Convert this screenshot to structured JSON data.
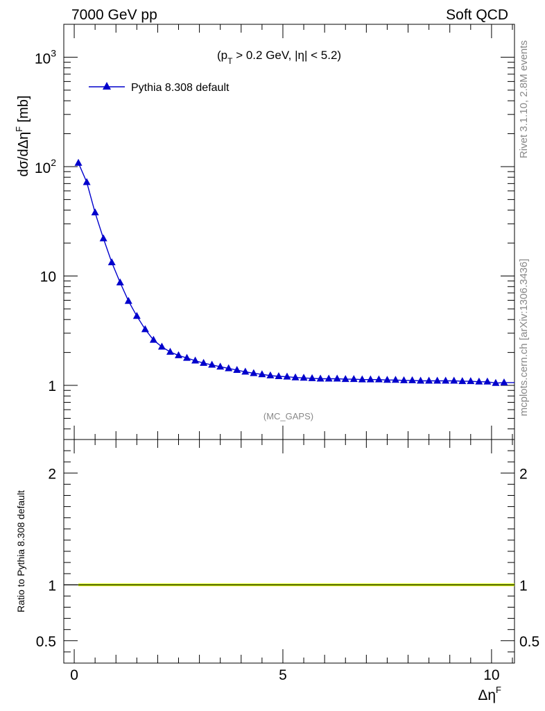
{
  "header": {
    "left": "7000 GeV pp",
    "right": "Soft QCD"
  },
  "side_text": {
    "rivet": "Rivet 3.1.10,  2.8M events",
    "mcplots": "mcplots.cern.ch [arXiv:1306.3436]"
  },
  "colors": {
    "series": "#0000cc",
    "band_outer": "#ddff00",
    "band_inner": "#8fd15a",
    "watermark": "#888888"
  },
  "chart_data": [
    {
      "type": "line",
      "panel": "main",
      "title": "",
      "annotation": "(p_T > 0.2 GeV, |η| < 5.2)",
      "annotation_parts": {
        "open": "(p",
        "sub": "T",
        "rest": " > 0.2 GeV, |η| < 5.2)"
      },
      "watermark": "(MC_GAPS)",
      "ylabel": "dσ/dΔη^F [mb]",
      "ylabel_parts": {
        "base": "dσ/dΔη",
        "sup": "F",
        "unit": " [mb]"
      },
      "yscale": "log",
      "ylim": [
        0.32,
        2000
      ],
      "xlim": [
        -0.25,
        10.55
      ],
      "grid": false,
      "legend_position": "top-left",
      "yticks": [
        {
          "value": 1000,
          "base": "10",
          "exp": "3"
        },
        {
          "value": 100,
          "base": "10",
          "exp": "2"
        },
        {
          "value": 10,
          "base": "10",
          "exp": ""
        },
        {
          "value": 1,
          "base": "1",
          "exp": ""
        }
      ],
      "series": [
        {
          "name": "Pythia 8.308 default",
          "marker": "triangle-up",
          "x": [
            0.1,
            0.3,
            0.5,
            0.7,
            0.9,
            1.1,
            1.3,
            1.5,
            1.7,
            1.9,
            2.1,
            2.3,
            2.5,
            2.7,
            2.9,
            3.1,
            3.3,
            3.5,
            3.7,
            3.9,
            4.1,
            4.3,
            4.5,
            4.7,
            4.9,
            5.1,
            5.3,
            5.5,
            5.7,
            5.9,
            6.1,
            6.3,
            6.5,
            6.7,
            6.9,
            7.1,
            7.3,
            7.5,
            7.7,
            7.9,
            8.1,
            8.3,
            8.5,
            8.7,
            8.9,
            9.1,
            9.3,
            9.5,
            9.7,
            9.9,
            10.1,
            10.3
          ],
          "y": [
            108,
            72,
            38,
            22,
            13.3,
            8.7,
            5.9,
            4.3,
            3.25,
            2.6,
            2.25,
            2.02,
            1.88,
            1.78,
            1.68,
            1.6,
            1.54,
            1.48,
            1.43,
            1.38,
            1.33,
            1.29,
            1.26,
            1.23,
            1.21,
            1.2,
            1.18,
            1.17,
            1.16,
            1.15,
            1.15,
            1.15,
            1.14,
            1.14,
            1.13,
            1.13,
            1.13,
            1.12,
            1.12,
            1.11,
            1.11,
            1.1,
            1.1,
            1.1,
            1.1,
            1.1,
            1.09,
            1.09,
            1.08,
            1.08,
            1.05,
            1.06
          ]
        }
      ]
    },
    {
      "type": "line",
      "panel": "ratio",
      "ylabel": "Ratio to Pythia 8.308 default",
      "xlabel": "Δη^F",
      "xlabel_parts": {
        "base": "Δη",
        "sup": "F"
      },
      "ylim": [
        0.3,
        2.3
      ],
      "xlim": [
        -0.25,
        10.55
      ],
      "yticks": [
        {
          "value": 2,
          "label": "2"
        },
        {
          "value": 1,
          "label": "1"
        },
        {
          "value": 0.5,
          "label": "0.5"
        }
      ],
      "xticks": [
        {
          "value": 0,
          "label": "0"
        },
        {
          "value": 5,
          "label": "5"
        },
        {
          "value": 10,
          "label": "10"
        }
      ],
      "series": [
        {
          "values_constant": 1,
          "band_halfwidth": 0.012
        }
      ]
    }
  ]
}
